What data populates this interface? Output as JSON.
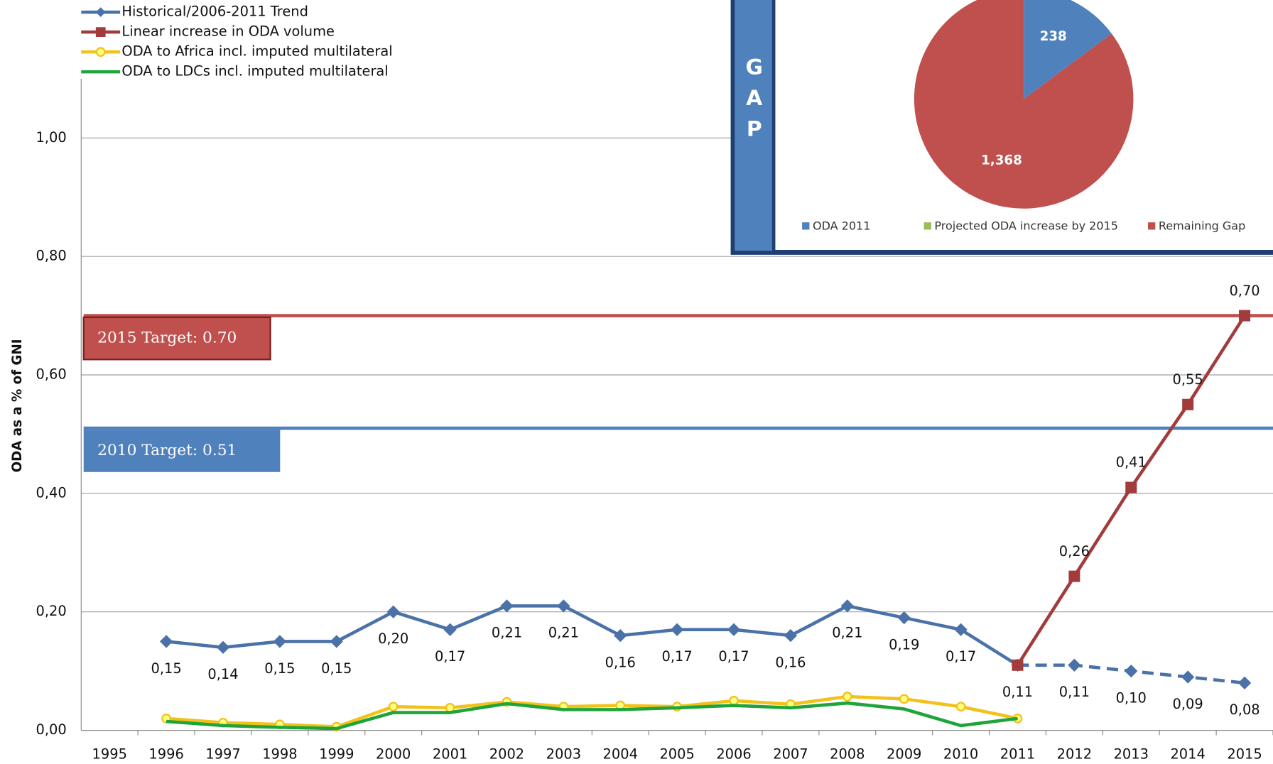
{
  "chart_data": [
    {
      "type": "line",
      "y_axis_label": "ODA as a % of GNI",
      "categories": [
        "1995",
        "1996",
        "1997",
        "1998",
        "1999",
        "2000",
        "2001",
        "2002",
        "2003",
        "2004",
        "2005",
        "2006",
        "2007",
        "2008",
        "2009",
        "2010",
        "2011",
        "2012",
        "2013",
        "2014",
        "2015"
      ],
      "ylim": [
        0,
        1.1
      ],
      "yticks": [
        {
          "value": 0,
          "label": "0,00"
        },
        {
          "value": 0.2,
          "label": "0,20"
        },
        {
          "value": 0.4,
          "label": "0,40"
        },
        {
          "value": 0.6,
          "label": "0,60"
        },
        {
          "value": 0.8,
          "label": "0,80"
        },
        {
          "value": 1,
          "label": "1,00"
        }
      ],
      "grid": true,
      "legend": "top-left",
      "series": [
        {
          "name": "Historical/2006-2011 Trend",
          "color": "#4a72a8",
          "marker": "diamond",
          "dash_from": "2011",
          "label_position": "below",
          "values": [
            null,
            0.15,
            0.14,
            0.15,
            0.15,
            0.2,
            0.17,
            0.21,
            0.21,
            0.16,
            0.17,
            0.17,
            0.16,
            0.21,
            0.19,
            0.17,
            0.11,
            0.11,
            0.1,
            0.09,
            0.08
          ],
          "value_labels": [
            null,
            "0,15",
            "0,14",
            "0,15",
            "0,15",
            "0,20",
            "0,17",
            "0,21",
            "0,21",
            "0,16",
            "0,17",
            "0,17",
            "0,16",
            "0,21",
            "0,19",
            "0,17",
            "0,11",
            "0,11",
            "0,10",
            "0,09",
            "0,08"
          ]
        },
        {
          "name": "Linear increase in ODA volume",
          "color": "#a23b3b",
          "marker": "square",
          "label_position": "above",
          "values": [
            null,
            null,
            null,
            null,
            null,
            null,
            null,
            null,
            null,
            null,
            null,
            null,
            null,
            null,
            null,
            null,
            0.11,
            0.26,
            0.41,
            0.55,
            0.7
          ],
          "value_labels": [
            null,
            null,
            null,
            null,
            null,
            null,
            null,
            null,
            null,
            null,
            null,
            null,
            null,
            null,
            null,
            null,
            null,
            "0,26",
            "0,41",
            "0,55",
            "0,70"
          ]
        },
        {
          "name": "ODA to Africa incl. imputed multilateral",
          "color": "#f2c11a",
          "marker": "circle",
          "values": [
            null,
            0.02,
            0.013,
            0.01,
            0.006,
            0.04,
            0.038,
            0.048,
            0.04,
            0.042,
            0.04,
            0.05,
            0.044,
            0.057,
            0.053,
            0.04,
            0.02,
            null,
            null,
            null,
            null
          ]
        },
        {
          "name": "ODA to LDCs incl. imputed multilateral",
          "color": "#1ea53a",
          "marker": "none",
          "values": [
            null,
            0.015,
            0.008,
            0.005,
            0.003,
            0.03,
            0.03,
            0.045,
            0.035,
            0.035,
            0.038,
            0.042,
            0.038,
            0.046,
            0.036,
            0.008,
            0.02,
            null,
            null,
            null,
            null
          ]
        }
      ],
      "targets": [
        {
          "value": 0.7,
          "label": "2015 Target: 0.70",
          "color": "#c0504d"
        },
        {
          "value": 0.51,
          "label": "2010 Target: 0.51",
          "color": "#4f81bd"
        }
      ]
    },
    {
      "type": "pie",
      "panel_label": [
        "G",
        "A",
        "P"
      ],
      "categories": [
        "ODA 2011",
        "Projected ODA increase by 2015",
        "Remaining Gap"
      ],
      "values": [
        238,
        0,
        1368
      ],
      "value_labels": [
        "238",
        null,
        "1,368"
      ],
      "colors": [
        "#4f81bd",
        "#9bbb59",
        "#c0504d"
      ]
    }
  ]
}
